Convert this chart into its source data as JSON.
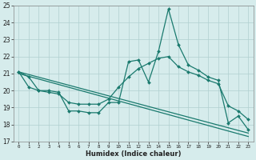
{
  "xlabel": "Humidex (Indice chaleur)",
  "xlim": [
    -0.5,
    23.5
  ],
  "ylim": [
    17,
    25
  ],
  "yticks": [
    17,
    18,
    19,
    20,
    21,
    22,
    23,
    24,
    25
  ],
  "xticks": [
    0,
    1,
    2,
    3,
    4,
    5,
    6,
    7,
    8,
    9,
    10,
    11,
    12,
    13,
    14,
    15,
    16,
    17,
    18,
    19,
    20,
    21,
    22,
    23
  ],
  "bg_color": "#d6ecec",
  "line_color": "#1a7a6e",
  "grid_color": "#b0d0d0",
  "line1": [
    21.1,
    20.8,
    20.0,
    20.0,
    19.9,
    18.8,
    18.8,
    18.7,
    18.7,
    19.3,
    19.3,
    21.7,
    21.8,
    20.5,
    22.3,
    24.8,
    22.7,
    21.5,
    21.2,
    20.8,
    20.6,
    18.1,
    18.5,
    17.7
  ],
  "line2": [
    21.1,
    20.2,
    20.0,
    19.9,
    19.8,
    19.3,
    19.2,
    19.2,
    19.2,
    19.5,
    20.2,
    20.8,
    21.3,
    21.6,
    21.9,
    22.0,
    21.4,
    21.1,
    20.9,
    20.6,
    20.4,
    19.1,
    18.8,
    18.3
  ],
  "line3_x": [
    0,
    23
  ],
  "line3_y": [
    21.1,
    17.5
  ],
  "line4_x": [
    0,
    23
  ],
  "line4_y": [
    21.0,
    17.3
  ]
}
